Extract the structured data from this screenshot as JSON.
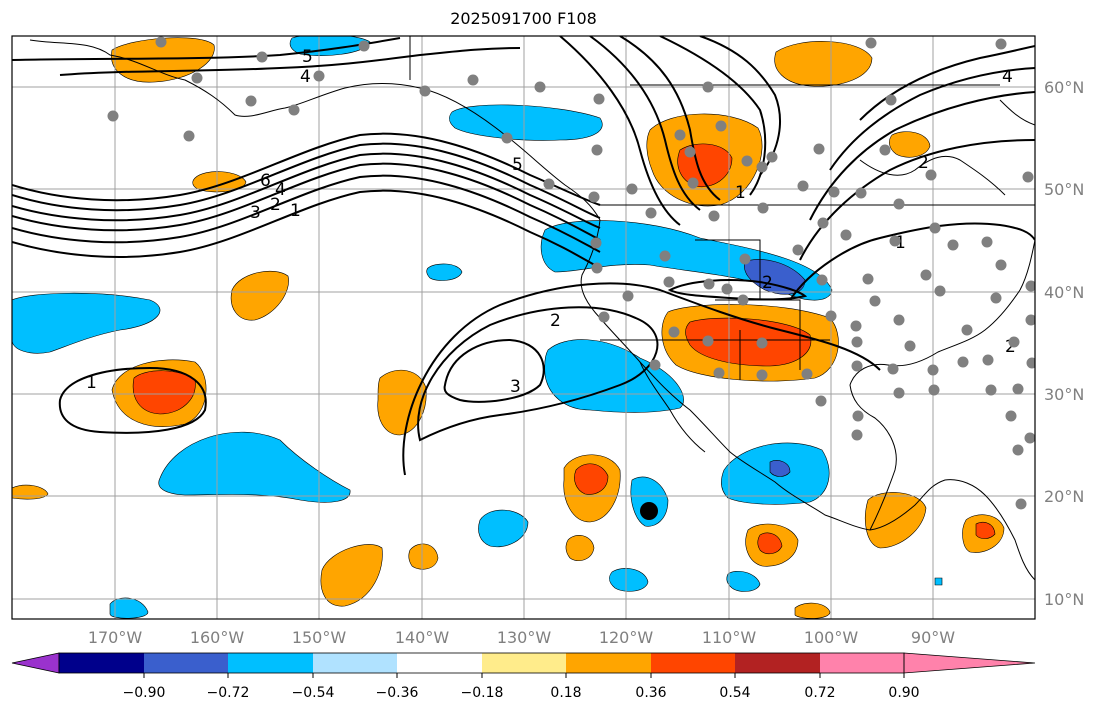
{
  "title": "2025091700 F108",
  "map": {
    "lat_labels": [
      "60°N",
      "50°N",
      "40°N",
      "30°N",
      "20°N",
      "10°N"
    ],
    "lon_labels": [
      "170°W",
      "160°W",
      "150°W",
      "140°W",
      "130°W",
      "120°W",
      "110°W",
      "100°W",
      "90°W"
    ],
    "contour_labels": [
      "1",
      "2",
      "3",
      "4",
      "5",
      "6",
      "5",
      "4",
      "2",
      "1",
      "3",
      "2",
      "1",
      "2",
      "4",
      "2",
      "1"
    ]
  },
  "colorbar": {
    "colors": [
      "#9a32cd",
      "#00008b",
      "#3a5fcd",
      "#00bfff",
      "#b0e2ff",
      "#ffffff",
      "#ffec8b",
      "#ffa500",
      "#ff4500",
      "#b22222",
      "#ff82ab"
    ],
    "tick_labels": [
      "−0.90",
      "−0.72",
      "−0.54",
      "−0.36",
      "−0.18",
      "0.18",
      "0.36",
      "0.54",
      "0.72",
      "0.90"
    ]
  }
}
